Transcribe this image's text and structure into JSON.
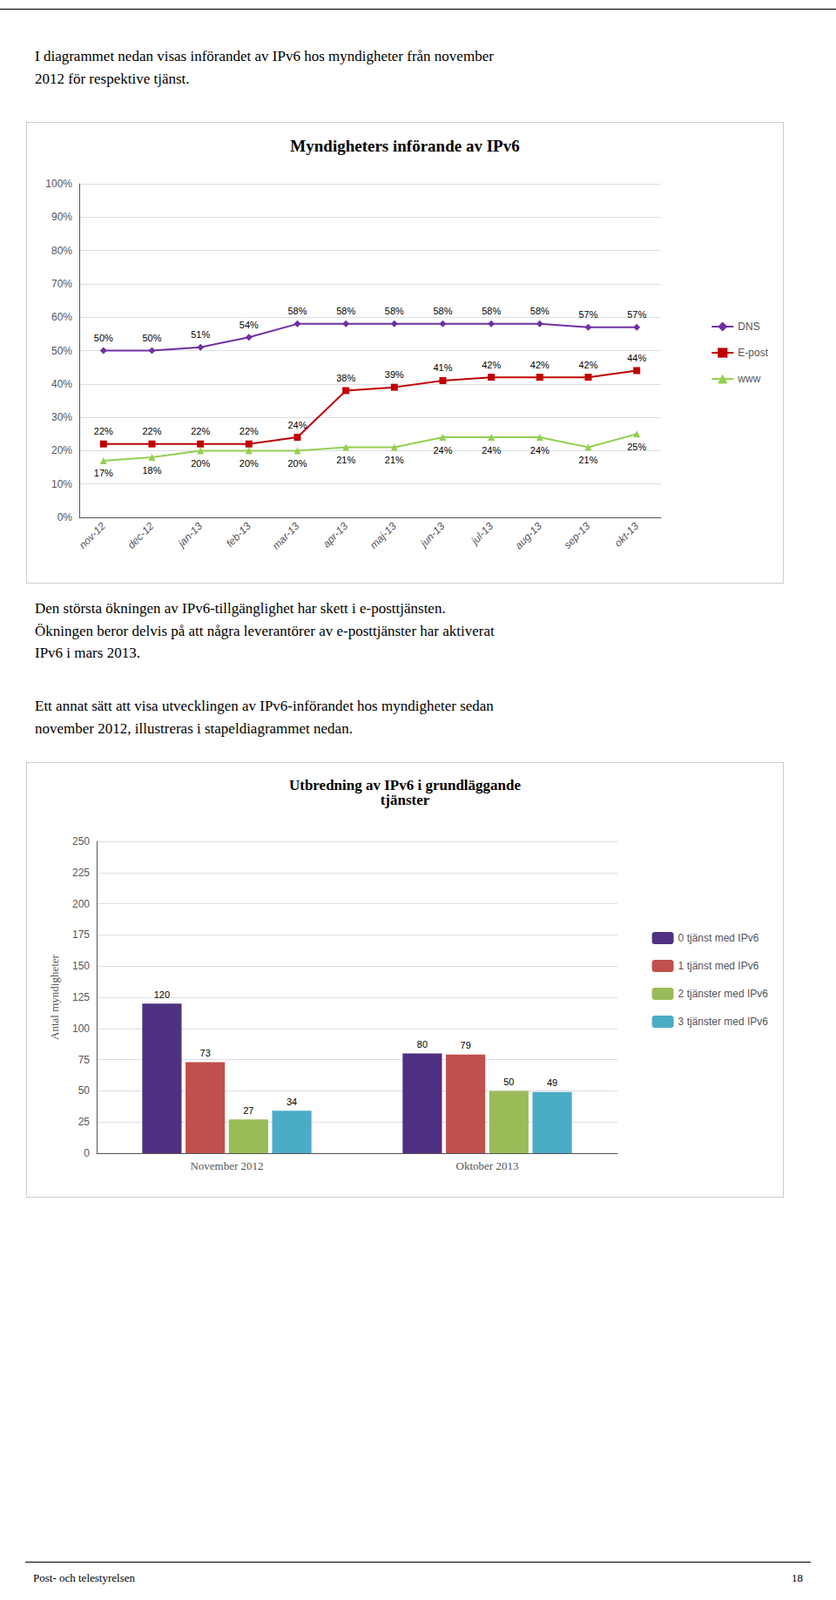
{
  "chart_data": [
    {
      "type": "line",
      "title": "Myndigheters införande av IPv6",
      "categories": [
        "nov-12",
        "dec-12",
        "jan-13",
        "feb-13",
        "mar-13",
        "apr-13",
        "maj-13",
        "jun-13",
        "jul-13",
        "aug-13",
        "sep-13",
        "okt-13"
      ],
      "series": [
        {
          "name": "DNS",
          "color": "#7030A0",
          "marker": "diamond",
          "values": [
            50,
            50,
            51,
            54,
            58,
            58,
            58,
            58,
            58,
            58,
            57,
            57
          ],
          "value_labels": [
            "50%",
            "50%",
            "51%",
            "54%",
            "58%",
            "58%",
            "58%",
            "58%",
            "58%",
            "58%",
            "57%",
            "57%"
          ]
        },
        {
          "name": "E-post",
          "color": "#C00000",
          "marker": "square",
          "values": [
            22,
            22,
            22,
            22,
            24,
            38,
            39,
            41,
            42,
            42,
            42,
            44
          ],
          "value_labels": [
            "22%",
            "22%",
            "22%",
            "22%",
            "24%",
            "38%",
            "39%",
            "41%",
            "42%",
            "42%",
            "42%",
            "44%"
          ]
        },
        {
          "name": "www",
          "color": "#92D050",
          "marker": "triangle",
          "values": [
            17,
            18,
            20,
            20,
            20,
            21,
            21,
            24,
            24,
            24,
            21,
            25
          ],
          "value_labels": [
            "17%",
            "18%",
            "20%",
            "20%",
            "20%",
            "21%",
            "21%",
            "24%",
            "24%",
            "24%",
            "21%",
            "25%"
          ]
        }
      ],
      "ylim": [
        0,
        100
      ],
      "yticks": [
        {
          "value": 0,
          "label": "0%"
        },
        {
          "value": 10,
          "label": "10%"
        },
        {
          "value": 20,
          "label": "20%"
        },
        {
          "value": 30,
          "label": "30%"
        },
        {
          "value": 40,
          "label": "40%"
        },
        {
          "value": 50,
          "label": "50%"
        },
        {
          "value": 60,
          "label": "60%"
        },
        {
          "value": 70,
          "label": "70%"
        },
        {
          "value": 80,
          "label": "80%"
        },
        {
          "value": 90,
          "label": "90%"
        },
        {
          "value": 100,
          "label": "100%"
        }
      ],
      "grid": true,
      "legend": "right",
      "data_labels": true,
      "annotations": [
        "I diagrammet nedan visas införandet av IPv6 hos myndigheter från november\n2012 för respektive tjänst.",
        "Den största ökningen av IPv6-tillgänglighet har skett i e-posttjänsten.\nÖkningen beror delvis på att några leverantörer av e-posttjänster har aktiverat\nIPv6 i mars 2013."
      ]
    },
    {
      "type": "bar",
      "title": "Utbredning av IPv6 i grundläggande\ntjänster",
      "categories": [
        "November 2012",
        "Oktober 2013"
      ],
      "series": [
        {
          "name": "0 tjänst med IPv6",
          "color": "#4F3181",
          "values": [
            120,
            80
          ]
        },
        {
          "name": "1 tjänst med IPv6",
          "color": "#C0504D",
          "values": [
            73,
            79
          ]
        },
        {
          "name": "2 tjänster med IPv6",
          "color": "#9BBB59",
          "values": [
            27,
            50
          ]
        },
        {
          "name": "3 tjänster med IPv6",
          "color": "#4BACC6",
          "values": [
            34,
            49
          ]
        }
      ],
      "ylabel": "Antal myndigheter",
      "ylim": [
        0,
        250
      ],
      "yticks": [
        0,
        25,
        50,
        75,
        100,
        125,
        150,
        175,
        200,
        225,
        250
      ],
      "grid": true,
      "legend": "right",
      "data_labels": true,
      "annotations": [
        "Ett annat sätt att visa utvecklingen av IPv6-införandet hos myndigheter sedan\nnovember 2012, illustreras i stapeldiagrammet nedan.",
        "Post- och telestyrelsen",
        "18"
      ]
    }
  ]
}
